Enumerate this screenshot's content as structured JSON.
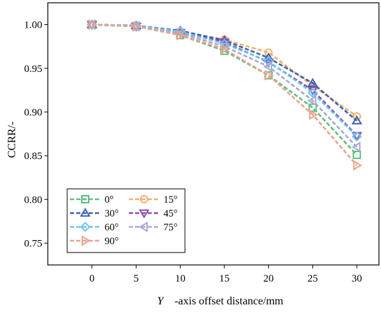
{
  "chart_data": {
    "type": "line",
    "title": "",
    "xlabel_italic": "Y",
    "xlabel_rest": "-axis offset distance/mm",
    "ylabel": "CCRR/-",
    "x": [
      0,
      5,
      10,
      15,
      20,
      25,
      30
    ],
    "xlim": [
      -5,
      32.5
    ],
    "ylim": [
      0.725,
      1.025
    ],
    "x_ticks": [
      "0",
      "5",
      "10",
      "15",
      "20",
      "25",
      "30"
    ],
    "y_ticks": [
      "0.75",
      "0.80",
      "0.85",
      "0.90",
      "0.95",
      "1.00"
    ],
    "grid": false,
    "legend_placement": "bottom-left",
    "series": [
      {
        "name": "0°",
        "marker": "square",
        "color": "#5fbf7f",
        "values": [
          1.0,
          0.998,
          0.988,
          0.97,
          0.942,
          0.905,
          0.851
        ]
      },
      {
        "name": "15°",
        "marker": "circle",
        "color": "#f2b070",
        "values": [
          1.0,
          0.999,
          0.992,
          0.983,
          0.968,
          0.93,
          0.895
        ]
      },
      {
        "name": "30°",
        "marker": "triangle-up",
        "color": "#3f62b0",
        "values": [
          1.0,
          0.999,
          0.993,
          0.982,
          0.962,
          0.933,
          0.89
        ]
      },
      {
        "name": "45°",
        "marker": "triangle-down",
        "color": "#8a4fb0",
        "values": [
          1.0,
          0.998,
          0.991,
          0.98,
          0.957,
          0.925,
          0.873
        ]
      },
      {
        "name": "60°",
        "marker": "diamond",
        "color": "#6cc6f0",
        "values": [
          1.0,
          0.999,
          0.992,
          0.978,
          0.958,
          0.922,
          0.872
        ]
      },
      {
        "name": "75°",
        "marker": "triangle-left",
        "color": "#a8a8d2",
        "values": [
          1.0,
          0.998,
          0.99,
          0.975,
          0.952,
          0.913,
          0.86
        ]
      },
      {
        "name": "90°",
        "marker": "triangle-right",
        "color": "#e8a48c",
        "values": [
          1.0,
          0.998,
          0.988,
          0.972,
          0.942,
          0.897,
          0.839
        ]
      }
    ]
  }
}
